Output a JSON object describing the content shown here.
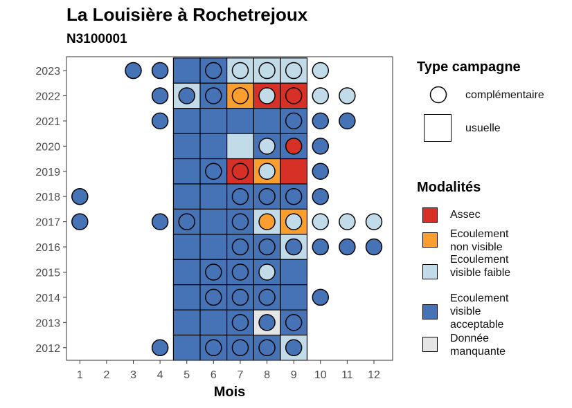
{
  "title": "La Louisière à Rochetrejoux",
  "subtitle": "N3100001",
  "chart_data": {
    "type": "heatmap",
    "xlabel": "Mois",
    "ylabel": "",
    "x_ticks": [
      1,
      2,
      3,
      4,
      5,
      6,
      7,
      8,
      9,
      10,
      11,
      12
    ],
    "y_ticks": [
      2012,
      2013,
      2014,
      2015,
      2016,
      2017,
      2018,
      2019,
      2020,
      2021,
      2022,
      2023
    ],
    "xlim": [
      0.5,
      12.7
    ],
    "ylim": [
      2011.5,
      2023.55
    ],
    "grid": false,
    "legend_position": "right",
    "colors": {
      "Assec": "#d73027",
      "Ecoulement non visible": "#fa9f2f",
      "Ecoulement visible faible": "#c2dbe9",
      "Ecoulement visible acceptable": "#4573b6",
      "Donnée manquante": "#e5e5e5"
    },
    "usuelle": [
      {
        "year": 2023,
        "month": 5,
        "modalite": "Ecoulement visible acceptable"
      },
      {
        "year": 2023,
        "month": 6,
        "modalite": "Ecoulement visible acceptable"
      },
      {
        "year": 2023,
        "month": 7,
        "modalite": "Ecoulement visible faible"
      },
      {
        "year": 2023,
        "month": 8,
        "modalite": "Ecoulement visible faible"
      },
      {
        "year": 2023,
        "month": 9,
        "modalite": "Ecoulement visible faible"
      },
      {
        "year": 2022,
        "month": 5,
        "modalite": "Ecoulement visible faible"
      },
      {
        "year": 2022,
        "month": 6,
        "modalite": "Ecoulement visible acceptable"
      },
      {
        "year": 2022,
        "month": 7,
        "modalite": "Ecoulement non visible"
      },
      {
        "year": 2022,
        "month": 8,
        "modalite": "Assec"
      },
      {
        "year": 2022,
        "month": 9,
        "modalite": "Assec"
      },
      {
        "year": 2021,
        "month": 5,
        "modalite": "Ecoulement visible acceptable"
      },
      {
        "year": 2021,
        "month": 6,
        "modalite": "Ecoulement visible acceptable"
      },
      {
        "year": 2021,
        "month": 7,
        "modalite": "Ecoulement visible acceptable"
      },
      {
        "year": 2021,
        "month": 8,
        "modalite": "Ecoulement visible acceptable"
      },
      {
        "year": 2021,
        "month": 9,
        "modalite": "Ecoulement visible acceptable"
      },
      {
        "year": 2020,
        "month": 5,
        "modalite": "Ecoulement visible acceptable"
      },
      {
        "year": 2020,
        "month": 6,
        "modalite": "Ecoulement visible acceptable"
      },
      {
        "year": 2020,
        "month": 7,
        "modalite": "Ecoulement visible faible"
      },
      {
        "year": 2020,
        "month": 8,
        "modalite": "Ecoulement visible acceptable"
      },
      {
        "year": 2020,
        "month": 9,
        "modalite": "Ecoulement visible acceptable"
      },
      {
        "year": 2019,
        "month": 5,
        "modalite": "Ecoulement visible acceptable"
      },
      {
        "year": 2019,
        "month": 6,
        "modalite": "Ecoulement visible acceptable"
      },
      {
        "year": 2019,
        "month": 7,
        "modalite": "Assec"
      },
      {
        "year": 2019,
        "month": 8,
        "modalite": "Ecoulement non visible"
      },
      {
        "year": 2019,
        "month": 9,
        "modalite": "Assec"
      },
      {
        "year": 2018,
        "month": 5,
        "modalite": "Ecoulement visible acceptable"
      },
      {
        "year": 2018,
        "month": 6,
        "modalite": "Ecoulement visible acceptable"
      },
      {
        "year": 2018,
        "month": 7,
        "modalite": "Ecoulement visible acceptable"
      },
      {
        "year": 2018,
        "month": 8,
        "modalite": "Ecoulement visible acceptable"
      },
      {
        "year": 2018,
        "month": 9,
        "modalite": "Ecoulement visible acceptable"
      },
      {
        "year": 2017,
        "month": 5,
        "modalite": "Ecoulement visible acceptable"
      },
      {
        "year": 2017,
        "month": 6,
        "modalite": "Ecoulement visible acceptable"
      },
      {
        "year": 2017,
        "month": 7,
        "modalite": "Ecoulement visible acceptable"
      },
      {
        "year": 2017,
        "month": 8,
        "modalite": "Ecoulement visible faible"
      },
      {
        "year": 2017,
        "month": 9,
        "modalite": "Ecoulement non visible"
      },
      {
        "year": 2016,
        "month": 5,
        "modalite": "Ecoulement visible acceptable"
      },
      {
        "year": 2016,
        "month": 6,
        "modalite": "Ecoulement visible acceptable"
      },
      {
        "year": 2016,
        "month": 7,
        "modalite": "Ecoulement visible acceptable"
      },
      {
        "year": 2016,
        "month": 8,
        "modalite": "Ecoulement visible acceptable"
      },
      {
        "year": 2016,
        "month": 9,
        "modalite": "Ecoulement visible faible"
      },
      {
        "year": 2015,
        "month": 5,
        "modalite": "Ecoulement visible acceptable"
      },
      {
        "year": 2015,
        "month": 6,
        "modalite": "Ecoulement visible acceptable"
      },
      {
        "year": 2015,
        "month": 7,
        "modalite": "Ecoulement visible acceptable"
      },
      {
        "year": 2015,
        "month": 8,
        "modalite": "Ecoulement visible acceptable"
      },
      {
        "year": 2015,
        "month": 9,
        "modalite": "Ecoulement visible acceptable"
      },
      {
        "year": 2014,
        "month": 5,
        "modalite": "Ecoulement visible acceptable"
      },
      {
        "year": 2014,
        "month": 6,
        "modalite": "Ecoulement visible acceptable"
      },
      {
        "year": 2014,
        "month": 7,
        "modalite": "Ecoulement visible acceptable"
      },
      {
        "year": 2014,
        "month": 8,
        "modalite": "Ecoulement visible acceptable"
      },
      {
        "year": 2014,
        "month": 9,
        "modalite": "Ecoulement visible acceptable"
      },
      {
        "year": 2013,
        "month": 5,
        "modalite": "Ecoulement visible acceptable"
      },
      {
        "year": 2013,
        "month": 6,
        "modalite": "Ecoulement visible acceptable"
      },
      {
        "year": 2013,
        "month": 7,
        "modalite": "Ecoulement visible acceptable"
      },
      {
        "year": 2013,
        "month": 8,
        "modalite": "Donnée manquante"
      },
      {
        "year": 2013,
        "month": 9,
        "modalite": "Ecoulement visible acceptable"
      },
      {
        "year": 2012,
        "month": 5,
        "modalite": "Ecoulement visible acceptable"
      },
      {
        "year": 2012,
        "month": 6,
        "modalite": "Ecoulement visible acceptable"
      },
      {
        "year": 2012,
        "month": 7,
        "modalite": "Ecoulement visible acceptable"
      },
      {
        "year": 2012,
        "month": 8,
        "modalite": "Ecoulement visible acceptable"
      },
      {
        "year": 2012,
        "month": 9,
        "modalite": "Ecoulement visible faible"
      }
    ],
    "complementaire": [
      {
        "year": 2023,
        "month": 3,
        "modalite": "Ecoulement visible acceptable"
      },
      {
        "year": 2023,
        "month": 4,
        "modalite": "Ecoulement visible acceptable"
      },
      {
        "year": 2023,
        "month": 6,
        "modalite": "Ecoulement visible acceptable"
      },
      {
        "year": 2023,
        "month": 7,
        "modalite": "Ecoulement visible faible"
      },
      {
        "year": 2023,
        "month": 8,
        "modalite": "Ecoulement visible faible"
      },
      {
        "year": 2023,
        "month": 9,
        "modalite": "Ecoulement visible faible"
      },
      {
        "year": 2023,
        "month": 10,
        "modalite": "Ecoulement visible faible"
      },
      {
        "year": 2022,
        "month": 4,
        "modalite": "Ecoulement visible acceptable"
      },
      {
        "year": 2022,
        "month": 5,
        "modalite": "Ecoulement visible acceptable"
      },
      {
        "year": 2022,
        "month": 6,
        "modalite": "Ecoulement visible acceptable"
      },
      {
        "year": 2022,
        "month": 7,
        "modalite": "Ecoulement non visible"
      },
      {
        "year": 2022,
        "month": 8,
        "modalite": "Ecoulement visible faible"
      },
      {
        "year": 2022,
        "month": 9,
        "modalite": "Assec"
      },
      {
        "year": 2022,
        "month": 10,
        "modalite": "Ecoulement visible faible"
      },
      {
        "year": 2022,
        "month": 11,
        "modalite": "Ecoulement visible faible"
      },
      {
        "year": 2021,
        "month": 4,
        "modalite": "Ecoulement visible acceptable"
      },
      {
        "year": 2021,
        "month": 9,
        "modalite": "Ecoulement visible acceptable"
      },
      {
        "year": 2021,
        "month": 10,
        "modalite": "Ecoulement visible acceptable"
      },
      {
        "year": 2021,
        "month": 11,
        "modalite": "Ecoulement visible acceptable"
      },
      {
        "year": 2020,
        "month": 8,
        "modalite": "Ecoulement visible faible"
      },
      {
        "year": 2020,
        "month": 9,
        "modalite": "Assec"
      },
      {
        "year": 2020,
        "month": 10,
        "modalite": "Ecoulement visible acceptable"
      },
      {
        "year": 2019,
        "month": 6,
        "modalite": "Ecoulement visible acceptable"
      },
      {
        "year": 2019,
        "month": 7,
        "modalite": "Assec"
      },
      {
        "year": 2019,
        "month": 8,
        "modalite": "Ecoulement visible faible"
      },
      {
        "year": 2019,
        "month": 10,
        "modalite": "Ecoulement visible acceptable"
      },
      {
        "year": 2018,
        "month": 1,
        "modalite": "Ecoulement visible acceptable"
      },
      {
        "year": 2018,
        "month": 7,
        "modalite": "Ecoulement visible acceptable"
      },
      {
        "year": 2018,
        "month": 8,
        "modalite": "Ecoulement visible acceptable"
      },
      {
        "year": 2018,
        "month": 9,
        "modalite": "Ecoulement visible acceptable"
      },
      {
        "year": 2018,
        "month": 10,
        "modalite": "Ecoulement visible acceptable"
      },
      {
        "year": 2017,
        "month": 1,
        "modalite": "Ecoulement visible acceptable"
      },
      {
        "year": 2017,
        "month": 4,
        "modalite": "Ecoulement visible acceptable"
      },
      {
        "year": 2017,
        "month": 5,
        "modalite": "Ecoulement visible acceptable"
      },
      {
        "year": 2017,
        "month": 7,
        "modalite": "Ecoulement visible acceptable"
      },
      {
        "year": 2017,
        "month": 8,
        "modalite": "Ecoulement non visible"
      },
      {
        "year": 2017,
        "month": 9,
        "modalite": "Ecoulement visible faible"
      },
      {
        "year": 2017,
        "month": 10,
        "modalite": "Ecoulement visible faible"
      },
      {
        "year": 2017,
        "month": 11,
        "modalite": "Ecoulement visible faible"
      },
      {
        "year": 2017,
        "month": 12,
        "modalite": "Ecoulement visible faible"
      },
      {
        "year": 2016,
        "month": 7,
        "modalite": "Ecoulement visible acceptable"
      },
      {
        "year": 2016,
        "month": 8,
        "modalite": "Ecoulement visible acceptable"
      },
      {
        "year": 2016,
        "month": 9,
        "modalite": "Ecoulement visible acceptable"
      },
      {
        "year": 2016,
        "month": 10,
        "modalite": "Ecoulement visible acceptable"
      },
      {
        "year": 2016,
        "month": 11,
        "modalite": "Ecoulement visible acceptable"
      },
      {
        "year": 2016,
        "month": 12,
        "modalite": "Ecoulement visible acceptable"
      },
      {
        "year": 2015,
        "month": 6,
        "modalite": "Ecoulement visible acceptable"
      },
      {
        "year": 2015,
        "month": 7,
        "modalite": "Ecoulement visible acceptable"
      },
      {
        "year": 2015,
        "month": 8,
        "modalite": "Ecoulement visible faible"
      },
      {
        "year": 2014,
        "month": 6,
        "modalite": "Ecoulement visible acceptable"
      },
      {
        "year": 2014,
        "month": 7,
        "modalite": "Ecoulement visible acceptable"
      },
      {
        "year": 2014,
        "month": 8,
        "modalite": "Ecoulement visible acceptable"
      },
      {
        "year": 2014,
        "month": 10,
        "modalite": "Ecoulement visible acceptable"
      },
      {
        "year": 2013,
        "month": 7,
        "modalite": "Ecoulement visible acceptable"
      },
      {
        "year": 2013,
        "month": 8,
        "modalite": "Ecoulement visible acceptable"
      },
      {
        "year": 2013,
        "month": 9,
        "modalite": "Ecoulement visible acceptable"
      },
      {
        "year": 2012,
        "month": 4,
        "modalite": "Ecoulement visible acceptable"
      },
      {
        "year": 2012,
        "month": 6,
        "modalite": "Ecoulement visible acceptable"
      },
      {
        "year": 2012,
        "month": 7,
        "modalite": "Ecoulement visible acceptable"
      },
      {
        "year": 2012,
        "month": 8,
        "modalite": "Ecoulement visible acceptable"
      },
      {
        "year": 2012,
        "month": 9,
        "modalite": "Ecoulement visible acceptable"
      }
    ]
  },
  "legend": {
    "type_title": "Type campagne",
    "type_items": [
      {
        "label": "complémentaire"
      },
      {
        "label": "usuelle"
      }
    ],
    "mod_title": "Modalités",
    "mod_items": [
      {
        "key": "assec",
        "label": "Assec",
        "color": "#d73027"
      },
      {
        "key": "ecoulement-non-visible",
        "label": "Ecoulement non visible",
        "color": "#fa9f2f"
      },
      {
        "key": "ecoulement-visible-faible",
        "label": "Ecoulement visible faible",
        "color": "#c2dbe9"
      },
      {
        "key": "ecoulement-visible-acceptable",
        "label": "Ecoulement visible acceptable",
        "color": "#4573b6"
      },
      {
        "key": "donnee-manquante",
        "label": "Donnée manquante",
        "color": "#e5e5e5"
      }
    ]
  }
}
